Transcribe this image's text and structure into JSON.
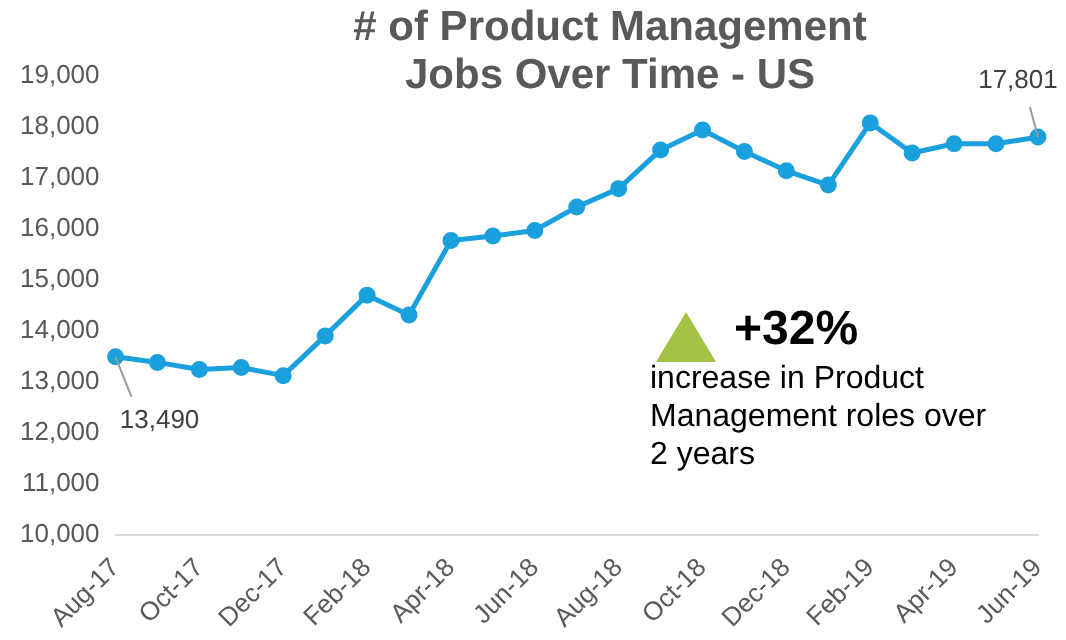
{
  "chart_data": {
    "type": "line",
    "title": "# of Product Management Jobs Over Time - US",
    "categories": [
      "Aug-17",
      null,
      "Oct-17",
      null,
      "Dec-17",
      null,
      "Feb-18",
      null,
      "Apr-18",
      null,
      "Jun-18",
      null,
      "Aug-18",
      null,
      "Oct-18",
      null,
      "Dec-18",
      null,
      "Feb-19",
      null,
      "Apr-19",
      null,
      "Jun-19"
    ],
    "series": [
      {
        "color": "#1aa0dc",
        "values": [
          13490,
          13380,
          13240,
          13280,
          13120,
          13900,
          14700,
          14310,
          15770,
          15860,
          15970,
          16430,
          16790,
          17550,
          17940,
          17520,
          17140,
          16860,
          18080,
          17490,
          17670,
          17670,
          17801
        ],
        "value_labels": [
          "13,490",
          null,
          null,
          null,
          null,
          null,
          null,
          null,
          null,
          null,
          null,
          null,
          null,
          null,
          null,
          null,
          null,
          null,
          null,
          null,
          null,
          null,
          "17,801"
        ]
      }
    ],
    "ylim": [
      10000,
      19000
    ],
    "yticks": [
      {
        "value": 10000,
        "label": "10,000"
      },
      {
        "value": 11000,
        "label": "11,000"
      },
      {
        "value": 12000,
        "label": "12,000"
      },
      {
        "value": 13000,
        "label": "13,000"
      },
      {
        "value": 14000,
        "label": "14,000"
      },
      {
        "value": 15000,
        "label": "15,000"
      },
      {
        "value": 16000,
        "label": "16,000"
      },
      {
        "value": 17000,
        "label": "17,000"
      },
      {
        "value": 18000,
        "label": "18,000"
      },
      {
        "value": 19000,
        "label": "19,000"
      }
    ],
    "grid": false,
    "legend": false,
    "marker": "circle",
    "line_style": "solid",
    "annotations": [
      "+32%",
      "increase in Product Management roles over 2 years"
    ]
  }
}
